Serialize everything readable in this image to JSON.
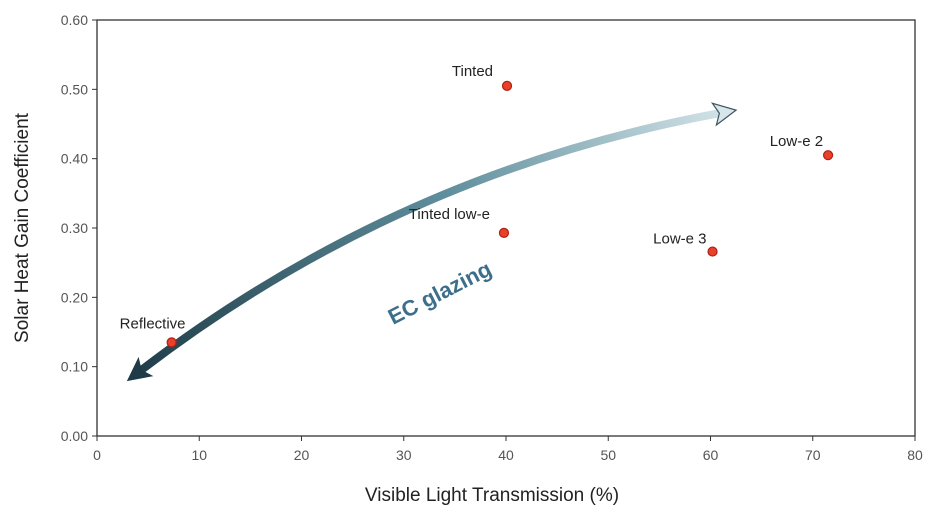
{
  "chart_data": {
    "type": "scatter",
    "xlabel": "Visible Light Transmission (%)",
    "ylabel": "Solar Heat Gain Coefficient",
    "xlim": [
      0,
      80
    ],
    "ylim": [
      0,
      0.6
    ],
    "x_ticks": [
      "0",
      "10",
      "20",
      "30",
      "40",
      "50",
      "60",
      "70",
      "80"
    ],
    "y_ticks": [
      "0.00",
      "0.10",
      "0.20",
      "0.30",
      "0.40",
      "0.50",
      "0.60"
    ],
    "grid": false,
    "points": [
      {
        "label": "Reflective",
        "x": 7.3,
        "y": 0.135
      },
      {
        "label": "Tinted",
        "x": 40.1,
        "y": 0.505
      },
      {
        "label": "Tinted low-e",
        "x": 39.8,
        "y": 0.293
      },
      {
        "label": "Low-e 3",
        "x": 60.2,
        "y": 0.266
      },
      {
        "label": "Low-e 2",
        "x": 71.5,
        "y": 0.405
      }
    ],
    "annotation": {
      "text": "EC glazing",
      "arrow": "double-headed",
      "from": {
        "x": 3,
        "y": 0.08
      },
      "to": {
        "x": 62.5,
        "y": 0.47
      }
    },
    "colors": {
      "point_fill": "#e8402a",
      "point_stroke": "#b02010",
      "arrow_dark": "#1f3b47",
      "arrow_light": "#d6e6ea",
      "annotation_text": "#3d6f8c",
      "axis": "#333333"
    }
  }
}
